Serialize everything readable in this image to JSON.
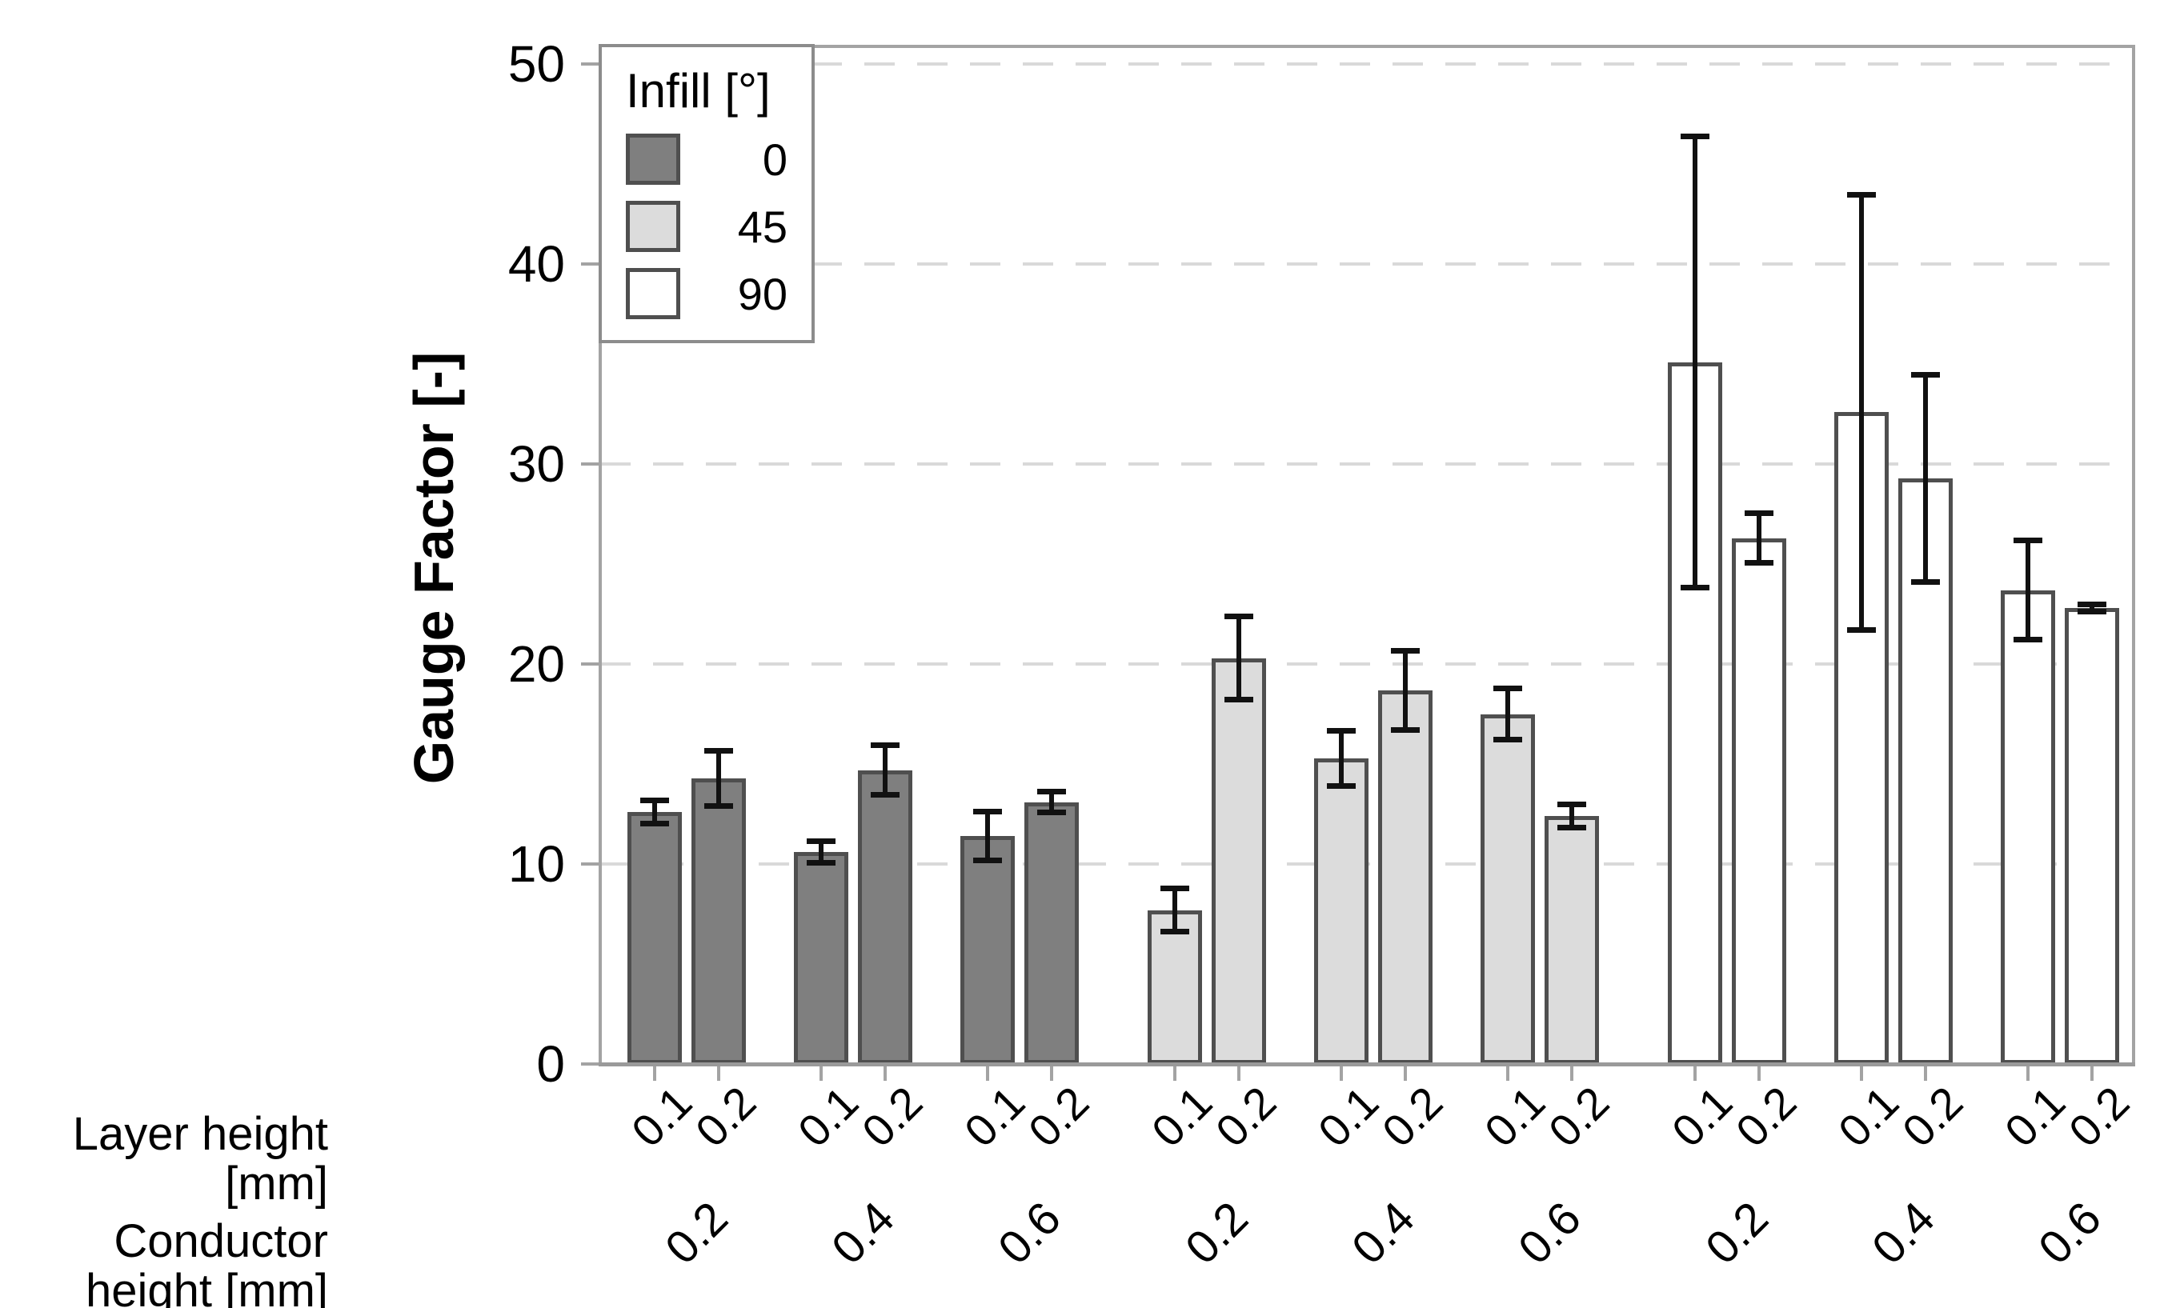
{
  "figure": {
    "ylabel": "Gauge Factor [-]",
    "row_labels": {
      "layer": "Layer height [mm]",
      "conductor": "Conductor height [mm]"
    }
  },
  "legend": {
    "title": "Infill [°]",
    "entries": [
      {
        "label": "0",
        "color": "#7f7f7f"
      },
      {
        "label": "45",
        "color": "#dcdcdc"
      },
      {
        "label": "90",
        "color": "#ffffff"
      }
    ]
  },
  "colors": {
    "bar_fill_0": "#7f7f7f",
    "bar_fill_45": "#dcdcdc",
    "bar_fill_90": "#ffffff",
    "bar_border": "#4f4f4f",
    "error_bar": "#111111",
    "grid": "#d9d9d9",
    "axis": "#a3a3a3",
    "text": "#000000"
  },
  "chart_data": {
    "type": "bar",
    "title": "",
    "xlabel": "",
    "ylabel": "Gauge Factor [-]",
    "ylim": [
      0,
      50
    ],
    "yticks": [
      0,
      10,
      20,
      30,
      40,
      50
    ],
    "grid": "horizontal dashed at 10,20,30,40,50",
    "legend_title": "Infill [°]",
    "legend_position": "upper left inside plot",
    "x_axis_rows": [
      "Layer height [mm]",
      "Conductor height [mm]"
    ],
    "error_bars": "symmetric, black, capped",
    "groups": [
      {
        "infill": "0",
        "color": "#7f7f7f",
        "pairs": [
          {
            "conductor": "0.2",
            "bars": [
              {
                "layer": "0.1",
                "value": 12.6,
                "error": 0.6
              },
              {
                "layer": "0.2",
                "value": 14.3,
                "error": 1.4
              }
            ]
          },
          {
            "conductor": "0.4",
            "bars": [
              {
                "layer": "0.1",
                "value": 10.6,
                "error": 0.55
              },
              {
                "layer": "0.2",
                "value": 14.7,
                "error": 1.25
              }
            ]
          },
          {
            "conductor": "0.6",
            "bars": [
              {
                "layer": "0.1",
                "value": 11.4,
                "error": 1.25
              },
              {
                "layer": "0.2",
                "value": 13.1,
                "error": 0.55
              }
            ]
          }
        ]
      },
      {
        "infill": "45",
        "color": "#dcdcdc",
        "pairs": [
          {
            "conductor": "0.2",
            "bars": [
              {
                "layer": "0.1",
                "value": 7.7,
                "error": 1.1
              },
              {
                "layer": "0.2",
                "value": 20.3,
                "error": 2.1
              }
            ]
          },
          {
            "conductor": "0.4",
            "bars": [
              {
                "layer": "0.1",
                "value": 15.3,
                "error": 1.4
              },
              {
                "layer": "0.2",
                "value": 18.7,
                "error": 2.0
              }
            ]
          },
          {
            "conductor": "0.6",
            "bars": [
              {
                "layer": "0.1",
                "value": 17.5,
                "error": 1.3
              },
              {
                "layer": "0.2",
                "value": 12.4,
                "error": 0.6
              }
            ]
          }
        ]
      },
      {
        "infill": "90",
        "color": "#ffffff",
        "pairs": [
          {
            "conductor": "0.2",
            "bars": [
              {
                "layer": "0.1",
                "value": 35.1,
                "error": 11.3
              },
              {
                "layer": "0.2",
                "value": 26.3,
                "error": 1.25
              }
            ]
          },
          {
            "conductor": "0.4",
            "bars": [
              {
                "layer": "0.1",
                "value": 32.6,
                "error": 10.9
              },
              {
                "layer": "0.2",
                "value": 29.3,
                "error": 5.2
              }
            ]
          },
          {
            "conductor": "0.6",
            "bars": [
              {
                "layer": "0.1",
                "value": 23.7,
                "error": 2.5
              },
              {
                "layer": "0.2",
                "value": 22.8,
                "error": 0.2
              }
            ]
          }
        ]
      }
    ]
  }
}
